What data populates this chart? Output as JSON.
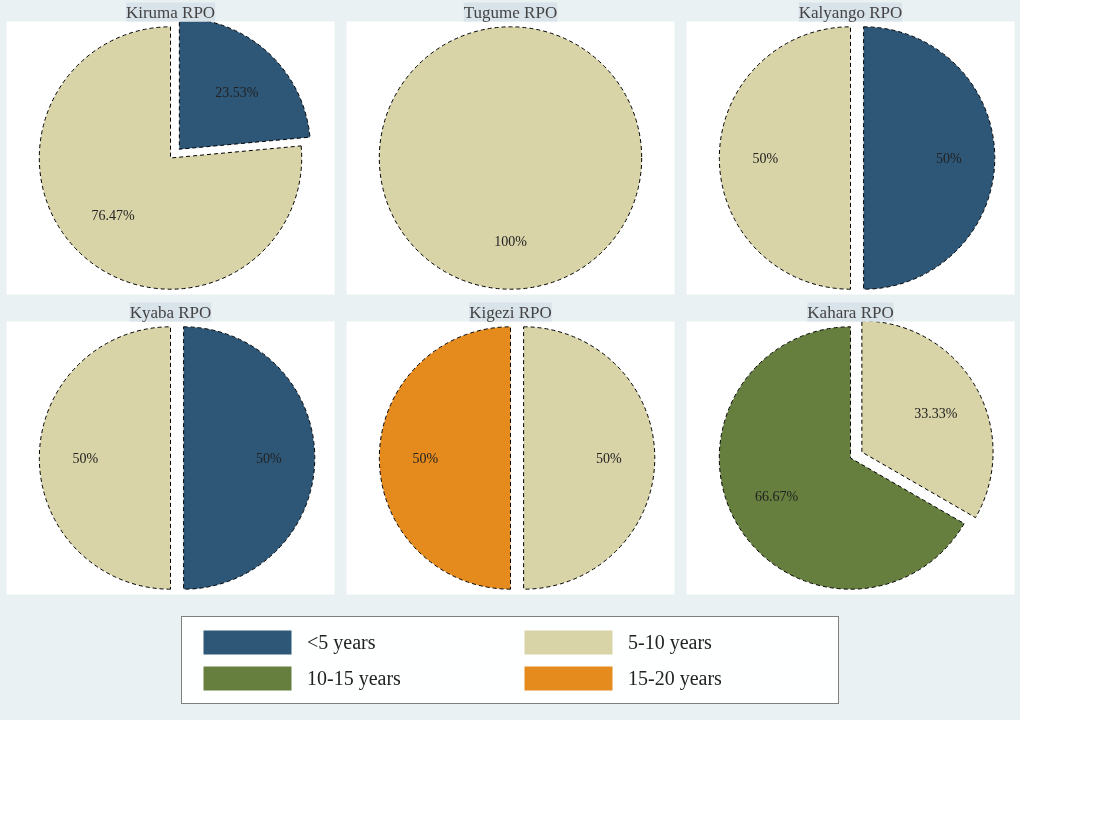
{
  "chart_data": [
    {
      "type": "pie",
      "title": "Kiruma RPO",
      "values": [
        23.53,
        76.47,
        0,
        0
      ],
      "colors": [
        "#2d5677",
        "#d9d4a8",
        "#667f3f",
        "#e58b1e"
      ],
      "value_labels": [
        "23.53%",
        "76.47%",
        null,
        null
      ]
    },
    {
      "type": "pie",
      "title": "Tugume RPO",
      "values": [
        0,
        100,
        0,
        0
      ],
      "colors": [
        "#2d5677",
        "#d9d4a8",
        "#667f3f",
        "#e58b1e"
      ],
      "value_labels": [
        null,
        "100%",
        null,
        null
      ]
    },
    {
      "type": "pie",
      "title": "Kalyango RPO",
      "values": [
        50,
        50,
        0,
        0
      ],
      "colors": [
        "#2d5677",
        "#d9d4a8",
        "#667f3f",
        "#e58b1e"
      ],
      "value_labels": [
        "50%",
        "50%",
        null,
        null
      ]
    },
    {
      "type": "pie",
      "title": "Kyaba RPO",
      "values": [
        50,
        50,
        0,
        0
      ],
      "colors": [
        "#2d5677",
        "#d9d4a8",
        "#667f3f",
        "#e58b1e"
      ],
      "value_labels": [
        "50%",
        "50%",
        null,
        null
      ]
    },
    {
      "type": "pie",
      "title": "Kigezi RPO",
      "values": [
        0,
        50,
        0,
        50
      ],
      "colors": [
        "#2d5677",
        "#d9d4a8",
        "#667f3f",
        "#e58b1e"
      ],
      "value_labels": [
        null,
        "50%",
        null,
        "50%"
      ]
    },
    {
      "type": "pie",
      "title": "Kahara RPO",
      "categories": [
        "<5 years",
        "5-10 years",
        "10-15 years",
        "15-20 years"
      ],
      "values": [
        0,
        33.33,
        66.67,
        0
      ],
      "colors": [
        "#2d5677",
        "#d9d4a8",
        "#667f3f",
        "#e58b1e"
      ],
      "value_labels": [
        null,
        "33.33%",
        "66.67%",
        null
      ],
      "legend": "bottom"
    }
  ]
}
